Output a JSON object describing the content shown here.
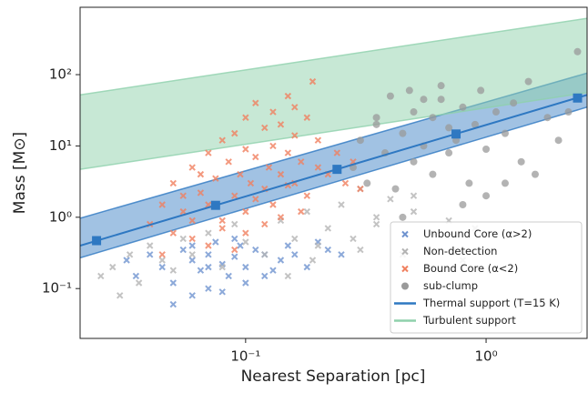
{
  "chart_data": {
    "type": "scatter",
    "x_label": "Nearest Separation [pc]",
    "y_label": "Mass [M⊙]",
    "xscale": "log",
    "yscale": "log",
    "xlim": [
      0.0205,
      2.63
    ],
    "ylim": [
      0.02,
      880
    ],
    "xticks": [
      {
        "value": 0.1,
        "label": "10⁻¹"
      },
      {
        "value": 1,
        "label": "10⁰"
      }
    ],
    "yticks": [
      {
        "value": 0.1,
        "label": "10⁻¹"
      },
      {
        "value": 1,
        "label": "10⁰"
      },
      {
        "value": 10,
        "label": "10¹"
      },
      {
        "value": 100,
        "label": "10²"
      }
    ],
    "legend": "lower right",
    "series": [
      {
        "name": "Unbound Core (α>2)",
        "type": "scatter",
        "marker": "x",
        "color": "#6f93cf",
        "x": [
          0.032,
          0.035,
          0.04,
          0.045,
          0.05,
          0.055,
          0.06,
          0.06,
          0.065,
          0.07,
          0.07,
          0.075,
          0.08,
          0.085,
          0.09,
          0.095,
          0.1,
          0.1,
          0.11,
          0.12,
          0.13,
          0.14,
          0.15,
          0.16,
          0.18,
          0.2,
          0.22,
          0.25,
          0.05,
          0.06,
          0.08,
          0.09,
          0.12,
          0.07
        ],
        "values": [
          0.25,
          0.15,
          0.3,
          0.2,
          0.12,
          0.35,
          0.25,
          0.08,
          0.18,
          0.3,
          0.1,
          0.45,
          0.22,
          0.15,
          0.28,
          0.4,
          0.2,
          0.12,
          0.35,
          0.3,
          0.18,
          0.25,
          0.4,
          0.3,
          0.2,
          0.45,
          0.35,
          0.3,
          0.06,
          0.4,
          0.09,
          0.5,
          0.15,
          0.2
        ]
      },
      {
        "name": "Non-detection",
        "type": "scatter",
        "marker": "x",
        "color": "#b4b4b4",
        "x": [
          0.025,
          0.028,
          0.03,
          0.033,
          0.036,
          0.04,
          0.045,
          0.05,
          0.055,
          0.06,
          0.07,
          0.08,
          0.09,
          0.1,
          0.12,
          0.14,
          0.16,
          0.18,
          0.2,
          0.22,
          0.25,
          0.28,
          0.3,
          0.35,
          0.4,
          0.45,
          0.5,
          0.6,
          0.7,
          0.8,
          0.9,
          0.15,
          0.3,
          0.5,
          0.19,
          0.35
        ],
        "values": [
          0.15,
          0.2,
          0.08,
          0.3,
          0.12,
          0.4,
          0.25,
          0.18,
          0.5,
          0.3,
          0.6,
          0.2,
          0.8,
          0.45,
          0.3,
          0.9,
          0.5,
          1.2,
          0.4,
          0.7,
          1.5,
          0.5,
          2.5,
          0.8,
          1.8,
          0.3,
          1.2,
          0.6,
          0.9,
          0.25,
          0.7,
          0.15,
          0.35,
          2,
          0.25,
          1
        ]
      },
      {
        "name": "Bound Core (α<2)",
        "type": "scatter",
        "marker": "x",
        "color": "#f0805f",
        "x": [
          0.04,
          0.045,
          0.05,
          0.05,
          0.055,
          0.06,
          0.06,
          0.065,
          0.07,
          0.07,
          0.075,
          0.08,
          0.08,
          0.085,
          0.09,
          0.09,
          0.095,
          0.1,
          0.1,
          0.1,
          0.105,
          0.11,
          0.11,
          0.12,
          0.12,
          0.125,
          0.13,
          0.13,
          0.14,
          0.14,
          0.15,
          0.15,
          0.16,
          0.16,
          0.17,
          0.18,
          0.18,
          0.19,
          0.2,
          0.2,
          0.22,
          0.24,
          0.26,
          0.28,
          0.3,
          0.06,
          0.07,
          0.08,
          0.09,
          0.1,
          0.11,
          0.12,
          0.13,
          0.14,
          0.15,
          0.17,
          0.045,
          0.055,
          0.065,
          0.16
        ],
        "values": [
          0.8,
          1.5,
          0.6,
          3,
          1.2,
          5,
          0.9,
          2.2,
          8,
          1.5,
          3.5,
          12,
          0.7,
          6,
          2,
          15,
          4,
          25,
          1.2,
          9,
          3,
          40,
          7,
          18,
          2.5,
          5,
          30,
          10,
          4,
          20,
          8,
          50,
          3,
          14,
          6,
          25,
          2,
          80,
          5,
          12,
          4,
          8,
          3,
          6,
          2.5,
          0.5,
          0.4,
          0.9,
          0.35,
          0.6,
          1.8,
          0.8,
          1.5,
          1,
          2.8,
          1.2,
          0.3,
          2,
          4,
          35
        ]
      },
      {
        "name": "sub-clump",
        "type": "scatter",
        "marker": "circle",
        "color": "#9a9a9a",
        "x": [
          0.28,
          0.3,
          0.32,
          0.35,
          0.38,
          0.4,
          0.42,
          0.45,
          0.48,
          0.5,
          0.5,
          0.55,
          0.6,
          0.6,
          0.65,
          0.7,
          0.7,
          0.75,
          0.8,
          0.85,
          0.9,
          0.95,
          1,
          1,
          1.1,
          1.2,
          1.3,
          1.4,
          1.5,
          1.6,
          1.8,
          2,
          2.2,
          2.4,
          0.45,
          0.55,
          0.8,
          1.2,
          0.35,
          0.65
        ],
        "values": [
          5,
          12,
          3,
          20,
          8,
          50,
          2.5,
          15,
          60,
          6,
          30,
          10,
          25,
          4,
          45,
          8,
          18,
          12,
          35,
          3,
          20,
          60,
          9,
          2,
          30,
          15,
          40,
          6,
          80,
          4,
          25,
          12,
          30,
          210,
          1,
          45,
          1.5,
          3,
          25,
          70
        ]
      },
      {
        "name": "Thermal support (T=15 K)",
        "type": "line",
        "color": "#2e78c2",
        "x": [
          0.0205,
          2.63
        ],
        "values": [
          0.4,
          52
        ],
        "markers": {
          "x": [
            0.024,
            0.075,
            0.24,
            0.75,
            2.4
          ],
          "values": [
            0.47,
            1.47,
            4.7,
            14.7,
            47
          ]
        },
        "band": {
          "x": [
            0.0205,
            2.63
          ],
          "lower": [
            0.27,
            35
          ],
          "upper": [
            0.97,
            105
          ]
        }
      },
      {
        "name": "Turbulent support",
        "type": "band",
        "color": "#8fd1ac",
        "band": {
          "x": [
            0.0205,
            2.63
          ],
          "lower": [
            4.7,
            56
          ],
          "upper": [
            52,
            617
          ]
        }
      }
    ]
  }
}
